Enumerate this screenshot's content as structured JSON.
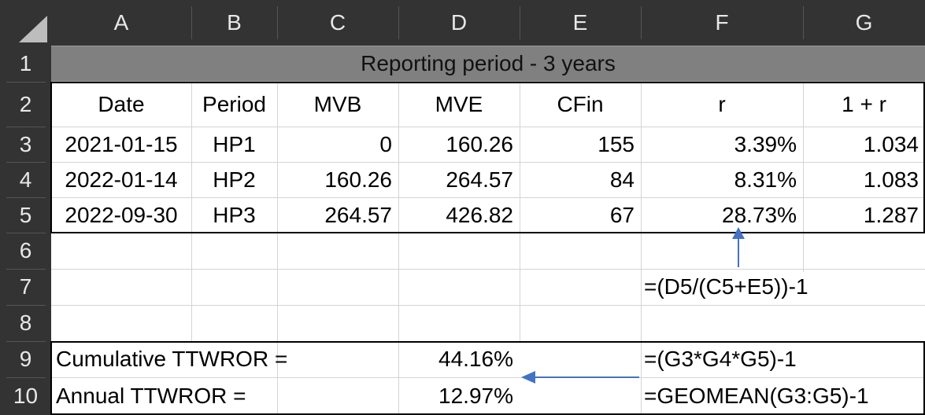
{
  "columns": [
    "A",
    "B",
    "C",
    "D",
    "E",
    "F",
    "G"
  ],
  "rows": [
    "1",
    "2",
    "3",
    "4",
    "5",
    "6",
    "7",
    "8",
    "9",
    "10"
  ],
  "title": "Reporting period - 3 years",
  "headers": [
    "Date",
    "Period",
    "MVB",
    "MVE",
    "CFin",
    "r",
    "1 + r"
  ],
  "data_rows": [
    [
      "2021-01-15",
      "HP1",
      "0",
      "160.26",
      "155",
      "3.39%",
      "1.034"
    ],
    [
      "2022-01-14",
      "HP2",
      "160.26",
      "264.57",
      "84",
      "8.31%",
      "1.083"
    ],
    [
      "2022-09-30",
      "HP3",
      "264.57",
      "426.82",
      "67",
      "28.73%",
      "1.287"
    ]
  ],
  "formula_r": "=(D5/(C5+E5))-1",
  "cumulative": {
    "label": "Cumulative TTWROR =",
    "value": "44.16%",
    "formula": "=(G3*G4*G5)-1"
  },
  "annual": {
    "label": "Annual TTWROR =",
    "value": "12.97%",
    "formula": "=GEOMEAN(G3:G5)-1"
  },
  "colors": {
    "header_bg": "#333333",
    "title_bg": "#808080",
    "arrow": "#4472c4"
  }
}
